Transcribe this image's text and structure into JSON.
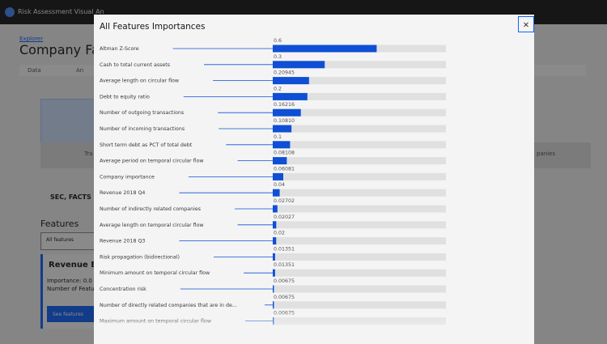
{
  "background": {
    "app_title": "Risk Assessment Visual An",
    "breadcrumb": "Explorer",
    "page_title": "Company Face",
    "tab": "Data",
    "tab2": "An",
    "section_title": "Features",
    "filter": "All features",
    "card_title": "Revenue By Q",
    "card_importance": "Importance: 0.0",
    "card_count": "Number of Featur",
    "button": "See features",
    "source": "SEC, FACTS",
    "tile_text": "Tra",
    "tile_text2": "panies"
  },
  "modal": {
    "title": "All Features Importances",
    "close": "×",
    "xlim": [
      0,
      1
    ],
    "features": [
      "Altman Z-Score",
      "Cash to total current assets",
      "Average length on circular flow",
      "Debt to equity ratio",
      "Number of outgoing transactions",
      "Number of incoming transactions",
      "Short term debt as PCT of total debt",
      "Average period on temporal circular flow",
      "Company importance",
      "Revenue 2018 Q4",
      "Number of indirectly related companies",
      "Average length on temporal circular flow",
      "Revenue 2018 Q3",
      "Risk propagation (bidirectional)",
      "Minimum amount on temporal circular flow",
      "Concentration risk",
      "Number of directly related companies that are in de...",
      "Maximum amount on temporal circular flow"
    ],
    "values": [
      0.6,
      0.3,
      0.20945,
      0.2,
      0.16216,
      0.1081,
      0.1,
      0.08108,
      0.06081,
      0.04,
      0.02702,
      0.02027,
      0.02,
      0.01351,
      0.01351,
      0.00675,
      0.00675,
      0.00675
    ],
    "value_labels": [
      "0.6",
      "0.3",
      "0.20945",
      "0.2",
      "0.16216",
      "0.10810",
      "0.1",
      "0.08108",
      "0.06081",
      "0.04",
      "0.02702",
      "0.02027",
      "0.02",
      "0.01351",
      "0.01351",
      "0.00675",
      "0.00675",
      "0.00675"
    ],
    "bar_color": "#0f4fd6",
    "track_color": "#e0e0e0"
  }
}
